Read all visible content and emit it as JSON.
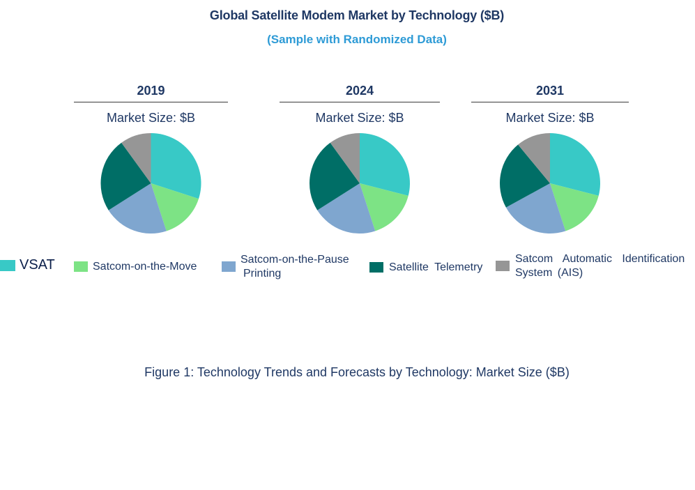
{
  "title": "Global Satellite Modem Market by Technology ($B)",
  "subtitle": "(Sample with Randomized Data)",
  "caption": "Figure 1: Technology Trends and Forecasts by Technology: Market Size ($B)",
  "colors": {
    "VSAT": "#38c9c6",
    "Satcom-on-the-Move": "#7de385",
    "Satcom-on-the-Pause Printing": "#7fa6cf",
    "Satellite Telemetry": "#006e66",
    "Satcom Automatic Identification System (AIS)": "#969696"
  },
  "legend": [
    {
      "label": "VSAT",
      "color": "#38c9c6"
    },
    {
      "label": "Satcom-on-the-Move",
      "color": "#7de385"
    },
    {
      "label": "Satcom-on-the-Pause Printing",
      "line1": "Satcom-on-the-Pause",
      "line2": "Printing",
      "color": "#7fa6cf"
    },
    {
      "label": "Satellite Telemetry",
      "color": "#006e66"
    },
    {
      "label": "Satcom Automatic Identification System (AIS)",
      "line1": "Satcom Automatic Identification",
      "line2": "System (AIS)",
      "color": "#969696"
    }
  ],
  "chart_data": {
    "type": "pie",
    "title": "Global Satellite Modem Market by Technology ($B)",
    "categories": [
      "VSAT",
      "Satcom-on-the-Move",
      "Satcom-on-the-Pause Printing",
      "Satellite Telemetry",
      "Satcom Automatic Identification System (AIS)"
    ],
    "pies": [
      {
        "year": "2019",
        "label": "Market Size: $B",
        "values": [
          30,
          15,
          21,
          24,
          10
        ]
      },
      {
        "year": "2024",
        "label": "Market Size: $B",
        "values": [
          29,
          16,
          21,
          24,
          10
        ]
      },
      {
        "year": "2031",
        "label": "Market Size: $B",
        "values": [
          29,
          16,
          22,
          22,
          11
        ]
      }
    ]
  }
}
